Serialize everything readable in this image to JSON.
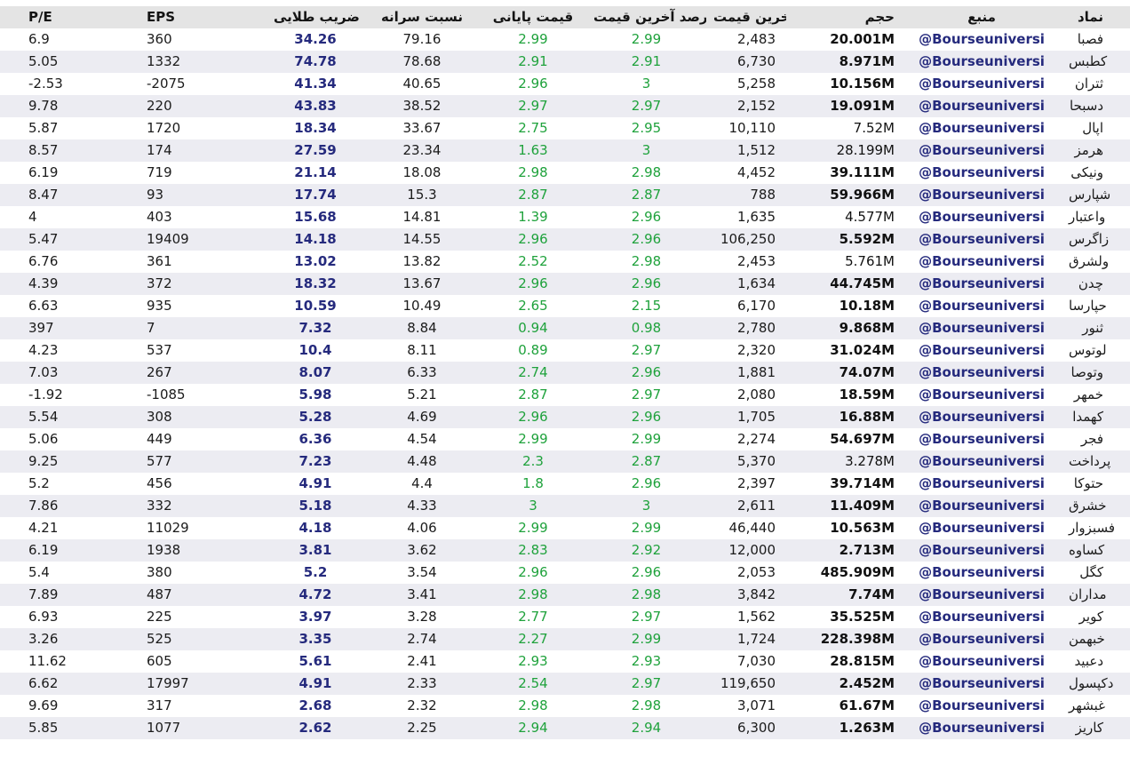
{
  "chart_data": {
    "type": "table",
    "title": "",
    "columns": [
      {
        "key": "pe",
        "label": "P/E"
      },
      {
        "key": "eps",
        "label": "EPS"
      },
      {
        "key": "golden",
        "label": "ضریب طلایی"
      },
      {
        "key": "percap",
        "label": "نسبت سرانه"
      },
      {
        "key": "close",
        "label": "قیمت پایانی"
      },
      {
        "key": "lastpct",
        "label": "درصد آخرین قیمت"
      },
      {
        "key": "last",
        "label": "آخرین قیمت"
      },
      {
        "key": "volume",
        "label": "حجم"
      },
      {
        "key": "source",
        "label": "منبع"
      },
      {
        "key": "symbol",
        "label": "نماد"
      }
    ],
    "rows": [
      [
        "6.9",
        "360",
        "34.26",
        "79.16",
        "2.99",
        "2.99",
        "2,483",
        "20.001M",
        "@Bourseuniversi",
        "فصبا"
      ],
      [
        "5.05",
        "1332",
        "74.78",
        "78.68",
        "2.91",
        "2.91",
        "6,730",
        "8.971M",
        "@Bourseuniversi",
        "کطبس"
      ],
      [
        "-2.53",
        "-2075",
        "41.34",
        "40.65",
        "2.96",
        "3",
        "5,258",
        "10.156M",
        "@Bourseuniversi",
        "ثتران"
      ],
      [
        "9.78",
        "220",
        "43.83",
        "38.52",
        "2.97",
        "2.97",
        "2,152",
        "19.091M",
        "@Bourseuniversi",
        "دسبحا"
      ],
      [
        "5.87",
        "1720",
        "18.34",
        "33.67",
        "2.75",
        "2.95",
        "10,110",
        "7.52M",
        "@Bourseuniversi",
        "اپال"
      ],
      [
        "8.57",
        "174",
        "27.59",
        "23.34",
        "1.63",
        "3",
        "1,512",
        "28.199M",
        "@Bourseuniversi",
        "هرمز"
      ],
      [
        "6.19",
        "719",
        "21.14",
        "18.08",
        "2.98",
        "2.98",
        "4,452",
        "39.111M",
        "@Bourseuniversi",
        "ونیکی"
      ],
      [
        "8.47",
        "93",
        "17.74",
        "15.3",
        "2.87",
        "2.87",
        "788",
        "59.966M",
        "@Bourseuniversi",
        "شپارس"
      ],
      [
        "4",
        "403",
        "15.68",
        "14.81",
        "1.39",
        "2.96",
        "1,635",
        "4.577M",
        "@Bourseuniversi",
        "واعتبار"
      ],
      [
        "5.47",
        "19409",
        "14.18",
        "14.55",
        "2.96",
        "2.96",
        "106,250",
        "5.592M",
        "@Bourseuniversi",
        "زاگرس"
      ],
      [
        "6.76",
        "361",
        "13.02",
        "13.82",
        "2.52",
        "2.98",
        "2,453",
        "5.761M",
        "@Bourseuniversi",
        "ولشرق"
      ],
      [
        "4.39",
        "372",
        "18.32",
        "13.67",
        "2.96",
        "2.96",
        "1,634",
        "44.745M",
        "@Bourseuniversi",
        "چدن"
      ],
      [
        "6.63",
        "935",
        "10.59",
        "10.49",
        "2.65",
        "2.15",
        "6,170",
        "10.18M",
        "@Bourseuniversi",
        "حپارسا"
      ],
      [
        "397",
        "7",
        "7.32",
        "8.84",
        "0.94",
        "0.98",
        "2,780",
        "9.868M",
        "@Bourseuniversi",
        "ثنور"
      ],
      [
        "4.23",
        "537",
        "10.4",
        "8.11",
        "0.89",
        "2.97",
        "2,320",
        "31.024M",
        "@Bourseuniversi",
        "لوتوس"
      ],
      [
        "7.03",
        "267",
        "8.07",
        "6.33",
        "2.74",
        "2.96",
        "1,881",
        "74.07M",
        "@Bourseuniversi",
        "وتوصا"
      ],
      [
        "-1.92",
        "-1085",
        "5.98",
        "5.21",
        "2.87",
        "2.97",
        "2,080",
        "18.59M",
        "@Bourseuniversi",
        "خمهر"
      ],
      [
        "5.54",
        "308",
        "5.28",
        "4.69",
        "2.96",
        "2.96",
        "1,705",
        "16.88M",
        "@Bourseuniversi",
        "کهمدا"
      ],
      [
        "5.06",
        "449",
        "6.36",
        "4.54",
        "2.99",
        "2.99",
        "2,274",
        "54.697M",
        "@Bourseuniversi",
        "فجر"
      ],
      [
        "9.25",
        "577",
        "7.23",
        "4.48",
        "2.3",
        "2.87",
        "5,370",
        "3.278M",
        "@Bourseuniversi",
        "پرداخت"
      ],
      [
        "5.2",
        "456",
        "4.91",
        "4.4",
        "1.8",
        "2.96",
        "2,397",
        "39.714M",
        "@Bourseuniversi",
        "حتوکا"
      ],
      [
        "7.86",
        "332",
        "5.18",
        "4.33",
        "3",
        "3",
        "2,611",
        "11.409M",
        "@Bourseuniversi",
        "خشرق"
      ],
      [
        "4.21",
        "11029",
        "4.18",
        "4.06",
        "2.99",
        "2.99",
        "46,440",
        "10.563M",
        "@Bourseuniversi",
        "فسبزوار"
      ],
      [
        "6.19",
        "1938",
        "3.81",
        "3.62",
        "2.83",
        "2.92",
        "12,000",
        "2.713M",
        "@Bourseuniversi",
        "کساوه"
      ],
      [
        "5.4",
        "380",
        "5.2",
        "3.54",
        "2.96",
        "2.96",
        "2,053",
        "485.909M",
        "@Bourseuniversi",
        "کگل"
      ],
      [
        "7.89",
        "487",
        "4.72",
        "3.41",
        "2.98",
        "2.98",
        "3,842",
        "7.74M",
        "@Bourseuniversi",
        "مداران"
      ],
      [
        "6.93",
        "225",
        "3.97",
        "3.28",
        "2.77",
        "2.97",
        "1,562",
        "35.525M",
        "@Bourseuniversi",
        "کویر"
      ],
      [
        "3.26",
        "525",
        "3.35",
        "2.74",
        "2.27",
        "2.99",
        "1,724",
        "228.398M",
        "@Bourseuniversi",
        "خبهمن"
      ],
      [
        "11.62",
        "605",
        "5.61",
        "2.41",
        "2.93",
        "2.93",
        "7,030",
        "28.815M",
        "@Bourseuniversi",
        "دعبید"
      ],
      [
        "6.62",
        "17997",
        "4.91",
        "2.33",
        "2.54",
        "2.97",
        "119,650",
        "2.452M",
        "@Bourseuniversi",
        "دکپسول"
      ],
      [
        "9.69",
        "317",
        "2.68",
        "2.32",
        "2.98",
        "2.98",
        "3,071",
        "61.67M",
        "@Bourseuniversi",
        "غبشهر"
      ],
      [
        "5.85",
        "1077",
        "2.62",
        "2.25",
        "2.94",
        "2.94",
        "6,300",
        "1.263M",
        "@Bourseuniversi",
        "کاریز"
      ]
    ],
    "volume_regular_rows": [
      4,
      5,
      8,
      10,
      19
    ],
    "source_handle": "@Bourseuniversi"
  },
  "colors": {
    "positive_green": "#1fa23c",
    "accent_navy": "#252a7d",
    "row_stripe": "#ececf2",
    "header_bg": "#e4e4e4"
  }
}
